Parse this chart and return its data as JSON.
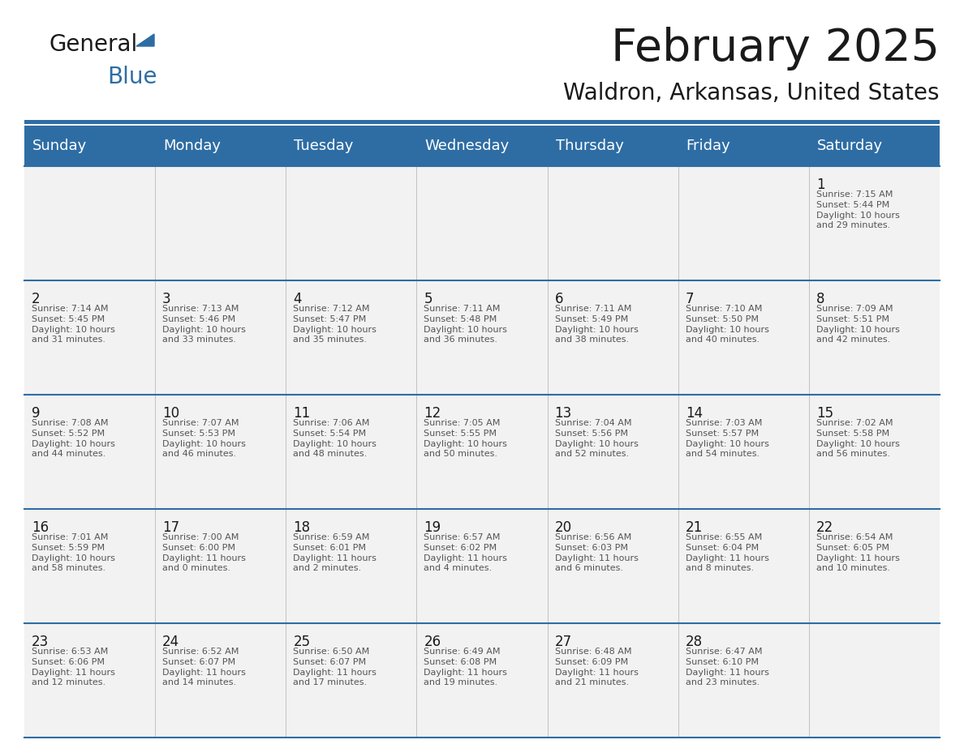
{
  "title": "February 2025",
  "subtitle": "Waldron, Arkansas, United States",
  "days_of_week": [
    "Sunday",
    "Monday",
    "Tuesday",
    "Wednesday",
    "Thursday",
    "Friday",
    "Saturday"
  ],
  "header_bg": "#2E6DA4",
  "header_text": "#FFFFFF",
  "cell_bg": "#F2F2F2",
  "cell_text": "#333333",
  "day_number_color": "#1a1a1a",
  "grid_line_color": "#2E6DA4",
  "cal_data": [
    [
      null,
      null,
      null,
      null,
      null,
      null,
      {
        "day": 1,
        "sunrise": "7:15 AM",
        "sunset": "5:44 PM",
        "daylight": "10 hours and 29 minutes."
      }
    ],
    [
      {
        "day": 2,
        "sunrise": "7:14 AM",
        "sunset": "5:45 PM",
        "daylight": "10 hours and 31 minutes."
      },
      {
        "day": 3,
        "sunrise": "7:13 AM",
        "sunset": "5:46 PM",
        "daylight": "10 hours and 33 minutes."
      },
      {
        "day": 4,
        "sunrise": "7:12 AM",
        "sunset": "5:47 PM",
        "daylight": "10 hours and 35 minutes."
      },
      {
        "day": 5,
        "sunrise": "7:11 AM",
        "sunset": "5:48 PM",
        "daylight": "10 hours and 36 minutes."
      },
      {
        "day": 6,
        "sunrise": "7:11 AM",
        "sunset": "5:49 PM",
        "daylight": "10 hours and 38 minutes."
      },
      {
        "day": 7,
        "sunrise": "7:10 AM",
        "sunset": "5:50 PM",
        "daylight": "10 hours and 40 minutes."
      },
      {
        "day": 8,
        "sunrise": "7:09 AM",
        "sunset": "5:51 PM",
        "daylight": "10 hours and 42 minutes."
      }
    ],
    [
      {
        "day": 9,
        "sunrise": "7:08 AM",
        "sunset": "5:52 PM",
        "daylight": "10 hours and 44 minutes."
      },
      {
        "day": 10,
        "sunrise": "7:07 AM",
        "sunset": "5:53 PM",
        "daylight": "10 hours and 46 minutes."
      },
      {
        "day": 11,
        "sunrise": "7:06 AM",
        "sunset": "5:54 PM",
        "daylight": "10 hours and 48 minutes."
      },
      {
        "day": 12,
        "sunrise": "7:05 AM",
        "sunset": "5:55 PM",
        "daylight": "10 hours and 50 minutes."
      },
      {
        "day": 13,
        "sunrise": "7:04 AM",
        "sunset": "5:56 PM",
        "daylight": "10 hours and 52 minutes."
      },
      {
        "day": 14,
        "sunrise": "7:03 AM",
        "sunset": "5:57 PM",
        "daylight": "10 hours and 54 minutes."
      },
      {
        "day": 15,
        "sunrise": "7:02 AM",
        "sunset": "5:58 PM",
        "daylight": "10 hours and 56 minutes."
      }
    ],
    [
      {
        "day": 16,
        "sunrise": "7:01 AM",
        "sunset": "5:59 PM",
        "daylight": "10 hours and 58 minutes."
      },
      {
        "day": 17,
        "sunrise": "7:00 AM",
        "sunset": "6:00 PM",
        "daylight": "11 hours and 0 minutes."
      },
      {
        "day": 18,
        "sunrise": "6:59 AM",
        "sunset": "6:01 PM",
        "daylight": "11 hours and 2 minutes."
      },
      {
        "day": 19,
        "sunrise": "6:57 AM",
        "sunset": "6:02 PM",
        "daylight": "11 hours and 4 minutes."
      },
      {
        "day": 20,
        "sunrise": "6:56 AM",
        "sunset": "6:03 PM",
        "daylight": "11 hours and 6 minutes."
      },
      {
        "day": 21,
        "sunrise": "6:55 AM",
        "sunset": "6:04 PM",
        "daylight": "11 hours and 8 minutes."
      },
      {
        "day": 22,
        "sunrise": "6:54 AM",
        "sunset": "6:05 PM",
        "daylight": "11 hours and 10 minutes."
      }
    ],
    [
      {
        "day": 23,
        "sunrise": "6:53 AM",
        "sunset": "6:06 PM",
        "daylight": "11 hours and 12 minutes."
      },
      {
        "day": 24,
        "sunrise": "6:52 AM",
        "sunset": "6:07 PM",
        "daylight": "11 hours and 14 minutes."
      },
      {
        "day": 25,
        "sunrise": "6:50 AM",
        "sunset": "6:07 PM",
        "daylight": "11 hours and 17 minutes."
      },
      {
        "day": 26,
        "sunrise": "6:49 AM",
        "sunset": "6:08 PM",
        "daylight": "11 hours and 19 minutes."
      },
      {
        "day": 27,
        "sunrise": "6:48 AM",
        "sunset": "6:09 PM",
        "daylight": "11 hours and 21 minutes."
      },
      {
        "day": 28,
        "sunrise": "6:47 AM",
        "sunset": "6:10 PM",
        "daylight": "11 hours and 23 minutes."
      },
      null
    ]
  ]
}
